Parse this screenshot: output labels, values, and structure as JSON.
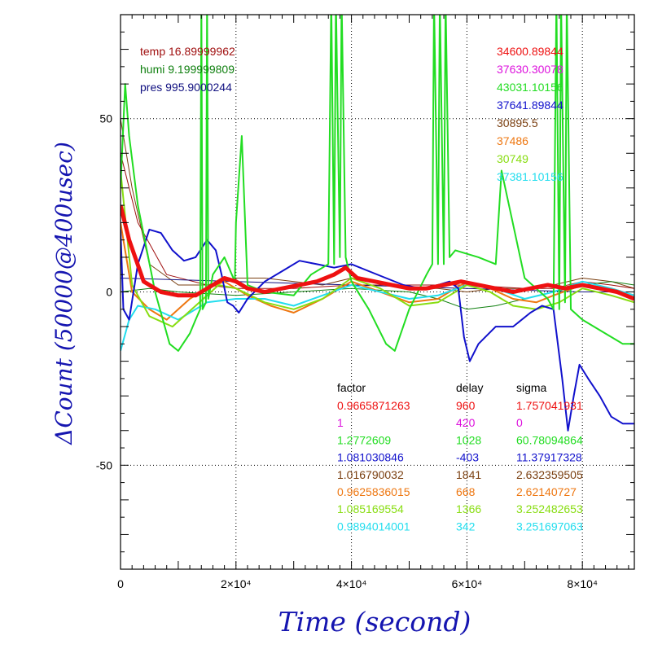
{
  "chart_data": {
    "type": "line",
    "xlabel": "Time (second)",
    "ylabel": "ΔCount (50000@400usec)",
    "xlim": [
      0,
      89000
    ],
    "ylim": [
      -80,
      80
    ],
    "x_ticks": [
      {
        "value": 0,
        "label": "0"
      },
      {
        "value": 20000,
        "label": "2×10⁴"
      },
      {
        "value": 40000,
        "label": "4×10⁴"
      },
      {
        "value": 60000,
        "label": "6×10⁴"
      },
      {
        "value": 80000,
        "label": "8×10⁴"
      }
    ],
    "y_ticks": [
      {
        "value": 50,
        "label": "50"
      },
      {
        "value": 0,
        "label": "0"
      },
      {
        "value": -50,
        "label": "-50"
      }
    ],
    "env": [
      {
        "label": "temp",
        "value": "16.89999962",
        "color": "#a01010"
      },
      {
        "label": "humi",
        "value": "9.199999809",
        "color": "#108010"
      },
      {
        "label": "pres",
        "value": "995.9000244",
        "color": "#101080"
      }
    ],
    "counts": [
      {
        "value": "34600.89844",
        "color": "#ee1111"
      },
      {
        "value": "37630.30078",
        "color": "#dd11dd"
      },
      {
        "value": "43031.10156",
        "color": "#22dd22"
      },
      {
        "value": "37641.89844",
        "color": "#1111cc"
      },
      {
        "value": "30895.5",
        "color": "#7a3f10"
      },
      {
        "value": "37486",
        "color": "#ee7711"
      },
      {
        "value": "30749",
        "color": "#88dd11"
      },
      {
        "value": "37381.10156",
        "color": "#22ddee"
      }
    ],
    "table": {
      "headers": [
        "factor",
        "delay",
        "sigma"
      ],
      "rows": [
        {
          "factor": "0.9665871263",
          "delay": "960",
          "sigma": "1.757041931",
          "color": "#ee1111"
        },
        {
          "factor": "1",
          "delay": "420",
          "sigma": "0",
          "color": "#dd11dd"
        },
        {
          "factor": "1.2772609",
          "delay": "1028",
          "sigma": "60.78094864",
          "color": "#22dd22"
        },
        {
          "factor": "1.081030846",
          "delay": "-403",
          "sigma": "11.37917328",
          "color": "#1111cc"
        },
        {
          "factor": "1.016790032",
          "delay": "1841",
          "sigma": "2.632359505",
          "color": "#7a3f10"
        },
        {
          "factor": "0.9625836015",
          "delay": "668",
          "sigma": "2.62140727",
          "color": "#ee7711"
        },
        {
          "factor": "1.085169554",
          "delay": "1366",
          "sigma": "3.252482653",
          "color": "#88dd11"
        },
        {
          "factor": "0.9894014001",
          "delay": "342",
          "sigma": "3.251697063",
          "color": "#22ddee"
        }
      ]
    },
    "series": [
      {
        "color": "#7a3f10",
        "width": 1,
        "x": [
          0,
          2000,
          5000,
          10000,
          15000,
          20000,
          25000,
          30000,
          35000,
          40000,
          45000,
          50000,
          55000,
          60000,
          65000,
          70000,
          75000,
          80000,
          85000,
          89000
        ],
        "y": [
          50,
          30,
          8,
          2,
          2,
          4,
          4,
          3,
          2,
          4,
          3,
          1,
          1,
          0,
          1,
          1,
          2,
          4,
          3,
          1
        ]
      },
      {
        "color": "#a01010",
        "width": 1,
        "x": [
          0,
          3000,
          8000,
          15000,
          20000,
          30000,
          40000,
          50000,
          60000,
          70000,
          75000,
          80000,
          85000,
          89000
        ],
        "y": [
          40,
          20,
          5,
          2,
          1,
          1,
          2,
          2,
          2,
          1,
          1,
          3,
          2,
          1
        ]
      },
      {
        "color": "#108010",
        "width": 1,
        "x": [
          0,
          5000,
          10000,
          20000,
          30000,
          40000,
          50000,
          55000,
          60000,
          65000,
          70000,
          75000,
          80000,
          85000,
          89000
        ],
        "y": [
          0,
          1,
          0,
          -1,
          0,
          1,
          0,
          -2,
          -5,
          -4,
          -2,
          0,
          2,
          3,
          2
        ]
      },
      {
        "color": "#101080",
        "width": 1,
        "x": [
          0,
          20000,
          40000,
          60000,
          80000,
          89000
        ],
        "y": [
          4,
          3,
          2,
          1,
          0,
          0
        ]
      },
      {
        "color": "#ee7711",
        "width": 2,
        "x": [
          0,
          2000,
          5000,
          8000,
          12000,
          15000,
          18000,
          22000,
          26000,
          30000,
          35000,
          40000,
          45000,
          50000,
          55000,
          60000,
          64000,
          68000,
          72000,
          75000,
          80000,
          85000,
          89000
        ],
        "y": [
          20,
          0,
          -5,
          -8,
          -2,
          1,
          3,
          -1,
          -4,
          -6,
          -2,
          3,
          0,
          -3,
          -2,
          3,
          1,
          -2,
          -3,
          -1,
          2,
          1,
          -1
        ]
      },
      {
        "color": "#22ddee",
        "width": 2,
        "x": [
          0,
          1500,
          3000,
          6000,
          10000,
          15000,
          20000,
          25000,
          30000,
          35000,
          40000,
          45000,
          50000,
          55000,
          60000,
          65000,
          70000,
          75000,
          80000,
          85000,
          89000
        ],
        "y": [
          -17,
          -8,
          -4,
          -5,
          -8,
          -3,
          -2,
          -2,
          -4,
          -1,
          2,
          0,
          -2,
          -1,
          2,
          1,
          -2,
          0,
          3,
          1,
          -1
        ]
      },
      {
        "color": "#88dd11",
        "width": 2,
        "x": [
          0,
          2000,
          5000,
          9000,
          13000,
          17000,
          20000,
          25000,
          30000,
          35000,
          40000,
          45000,
          50000,
          55000,
          60000,
          64000,
          68000,
          72000,
          76000,
          80000,
          85000,
          89000
        ],
        "y": [
          35,
          2,
          -7,
          -10,
          -4,
          2,
          1,
          -3,
          -5,
          -2,
          4,
          1,
          -4,
          -3,
          2,
          0,
          -4,
          -5,
          -3,
          1,
          -1,
          -3
        ]
      },
      {
        "color": "#1111cc",
        "width": 2,
        "x": [
          0,
          500,
          1500,
          3000,
          5000,
          7000,
          9000,
          11000,
          13000,
          15000,
          16500,
          17500,
          18500,
          19500,
          20500,
          22000,
          25000,
          28000,
          31000,
          34000,
          37000,
          40000,
          43000,
          46000,
          49000,
          52000,
          55000,
          57000,
          58500,
          59500,
          60500,
          62000,
          65000,
          68000,
          71000,
          73000,
          75000,
          76500,
          77500,
          78500,
          79500,
          81000,
          83000,
          85000,
          87000,
          89000
        ],
        "y": [
          18,
          -5,
          -8,
          8,
          18,
          17,
          12,
          9,
          10,
          15,
          12,
          5,
          -3,
          -4,
          -6,
          -2,
          3,
          6,
          9,
          8,
          7,
          8,
          6,
          4,
          2,
          1,
          2,
          3,
          1,
          -13,
          -20,
          -15,
          -10,
          -10,
          -6,
          -4,
          -5,
          -25,
          -40,
          -30,
          -21,
          -25,
          -30,
          -36,
          -38,
          -38
        ]
      },
      {
        "color": "#22dd22",
        "width": 2,
        "x": [
          0,
          800,
          1500,
          3000,
          6000,
          8500,
          10000,
          12000,
          13000,
          13800,
          14000,
          14200,
          14800,
          15000,
          15200,
          16000,
          18000,
          19800,
          20000,
          21000,
          22000,
          25000,
          30000,
          33000,
          36000,
          36500,
          37000,
          37300,
          38000,
          38300,
          39000,
          40000,
          43000,
          46000,
          47500,
          50000,
          53000,
          54000,
          54300,
          55000,
          55300,
          56000,
          56300,
          57000,
          58000,
          62000,
          65000,
          66000,
          70000,
          74000,
          75000,
          75500,
          76000,
          76300,
          77000,
          77300,
          78000,
          80000,
          84000,
          87000,
          89000
        ],
        "y": [
          30,
          60,
          45,
          25,
          0,
          -15,
          -17,
          -12,
          -8,
          -5,
          85,
          -5,
          -3,
          85,
          -2,
          5,
          10,
          3,
          20,
          45,
          2,
          0,
          -1,
          5,
          8,
          85,
          8,
          85,
          10,
          85,
          10,
          3,
          -5,
          -15,
          -17,
          -5,
          5,
          8,
          85,
          8,
          85,
          8,
          85,
          10,
          12,
          10,
          8,
          35,
          4,
          -2,
          -5,
          85,
          -5,
          85,
          -3,
          85,
          -5,
          -8,
          -12,
          -15,
          -15
        ]
      },
      {
        "color": "#ee1111",
        "width": 5,
        "x": [
          0,
          1500,
          4000,
          7000,
          10000,
          13000,
          16000,
          18000,
          20000,
          22000,
          25000,
          28000,
          31000,
          34000,
          37000,
          39000,
          41000,
          44000,
          47000,
          50000,
          53000,
          56000,
          59000,
          62000,
          65000,
          68000,
          71000,
          74000,
          77000,
          80000,
          83000,
          86000,
          89000
        ],
        "y": [
          25,
          15,
          3,
          0,
          -1,
          -1,
          2,
          4,
          3,
          1,
          0,
          1,
          2,
          3,
          5,
          7,
          4,
          3,
          2,
          1,
          1,
          2,
          3,
          2,
          1,
          0,
          1,
          2,
          1,
          2,
          1,
          0,
          -2
        ]
      }
    ]
  }
}
